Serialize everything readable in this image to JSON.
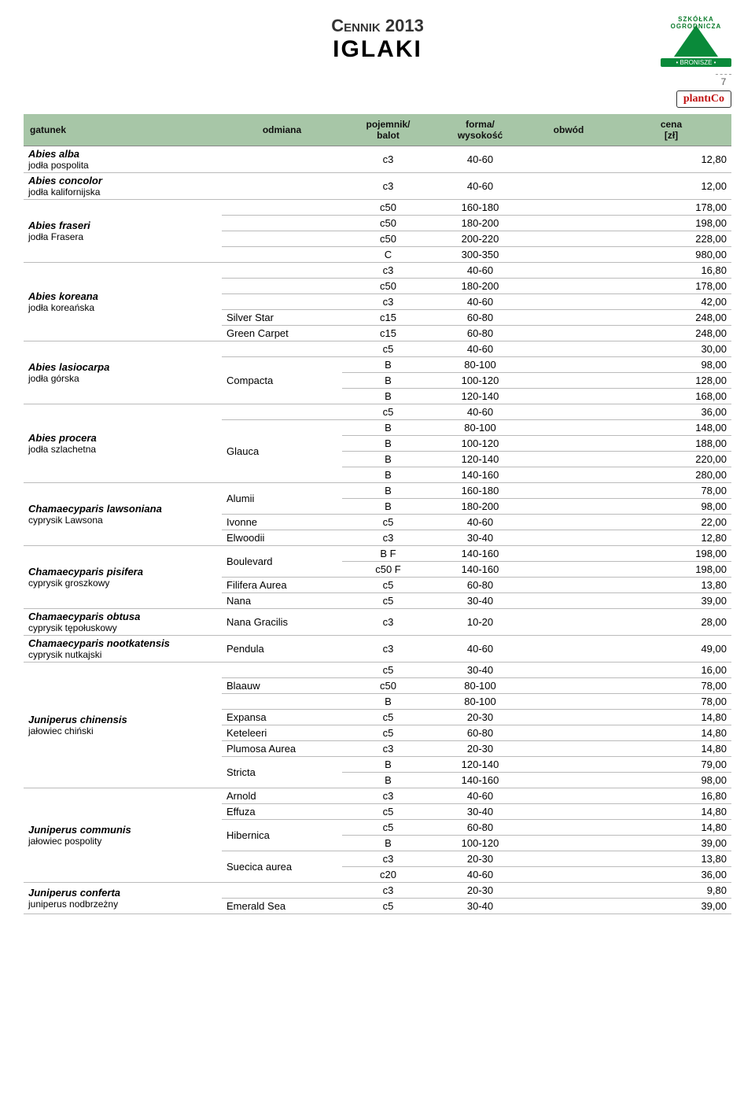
{
  "page": {
    "number": "7"
  },
  "title": {
    "small": "Cennik 2013",
    "big": "IGLAKI"
  },
  "logo": {
    "arc": "SZKÓŁKA OGRODNICZA",
    "bar": "• BRONISZE •",
    "brand": "plantıCo"
  },
  "headers": {
    "species": "gatunek",
    "variety": "odmiana",
    "container": "pojemnik/\nbalot",
    "form": "forma/\nwysokość",
    "circ": "obwód",
    "price": "cena\n[zł]"
  },
  "blocks": [
    {
      "sci": "Abies alba",
      "com": "jodła pospolita",
      "rows": [
        {
          "v": "",
          "c": "c3",
          "f": "40-60",
          "o": "",
          "p": "12,80"
        }
      ]
    },
    {
      "sci": "Abies concolor",
      "com": "jodła kalifornijska",
      "rows": [
        {
          "v": "",
          "c": "c3",
          "f": "40-60",
          "o": "",
          "p": "12,00"
        }
      ]
    },
    {
      "sci": "Abies fraseri",
      "com": "jodła Frasera",
      "rows": [
        {
          "v": "",
          "c": "c50",
          "f": "160-180",
          "o": "",
          "p": "178,00"
        },
        {
          "v": "",
          "c": "c50",
          "f": "180-200",
          "o": "",
          "p": "198,00"
        },
        {
          "v": "",
          "c": "c50",
          "f": "200-220",
          "o": "",
          "p": "228,00"
        },
        {
          "v": "",
          "c": "C",
          "f": "300-350",
          "o": "",
          "p": "980,00"
        }
      ]
    },
    {
      "sci": "Abies koreana",
      "com": "jodła koreańska",
      "rows": [
        {
          "v": "",
          "c": "c3",
          "f": "40-60",
          "o": "",
          "p": "16,80"
        },
        {
          "v": "",
          "c": "c50",
          "f": "180-200",
          "o": "",
          "p": "178,00"
        },
        {
          "v": "",
          "c": "c3",
          "f": "40-60",
          "o": "",
          "p": "42,00"
        },
        {
          "v": "Silver Star",
          "c": "c15",
          "f": "60-80",
          "o": "",
          "p": "248,00"
        },
        {
          "v": "Green Carpet",
          "c": "c15",
          "f": "60-80",
          "o": "",
          "p": "248,00"
        }
      ]
    },
    {
      "sci": "Abies lasiocarpa",
      "com": "jodła górska",
      "rows": [
        {
          "v": "",
          "c": "c5",
          "f": "40-60",
          "o": "",
          "p": "30,00"
        },
        {
          "v": "Compacta",
          "c": "B",
          "f": "80-100",
          "o": "",
          "p": "98,00",
          "vspan": 3
        },
        {
          "v": "",
          "c": "B",
          "f": "100-120",
          "o": "",
          "p": "128,00"
        },
        {
          "v": "",
          "c": "B",
          "f": "120-140",
          "o": "",
          "p": "168,00"
        }
      ]
    },
    {
      "sci": "Abies procera",
      "com": "jodła szlachetna",
      "rows": [
        {
          "v": "",
          "c": "c5",
          "f": "40-60",
          "o": "",
          "p": "36,00"
        },
        {
          "v": "Glauca",
          "c": "B",
          "f": "80-100",
          "o": "",
          "p": "148,00",
          "vspan": 4
        },
        {
          "v": "",
          "c": "B",
          "f": "100-120",
          "o": "",
          "p": "188,00"
        },
        {
          "v": "",
          "c": "B",
          "f": "120-140",
          "o": "",
          "p": "220,00"
        },
        {
          "v": "",
          "c": "B",
          "f": "140-160",
          "o": "",
          "p": "280,00"
        }
      ]
    },
    {
      "sci": "Chamaecyparis lawsoniana",
      "com": "cyprysik Lawsona",
      "rows": [
        {
          "v": "Alumii",
          "c": "B",
          "f": "160-180",
          "o": "",
          "p": "78,00",
          "vspan": 2
        },
        {
          "v": "",
          "c": "B",
          "f": "180-200",
          "o": "",
          "p": "98,00"
        },
        {
          "v": "Ivonne",
          "c": "c5",
          "f": "40-60",
          "o": "",
          "p": "22,00"
        },
        {
          "v": "Elwoodii",
          "c": "c3",
          "f": "30-40",
          "o": "",
          "p": "12,80"
        }
      ]
    },
    {
      "sci": "Chamaecyparis pisifera",
      "com": "cyprysik groszkowy",
      "rows": [
        {
          "v": "Boulevard",
          "c": "B F",
          "f": "140-160",
          "o": "",
          "p": "198,00",
          "vspan": 2
        },
        {
          "v": "",
          "c": "c50 F",
          "f": "140-160",
          "o": "",
          "p": "198,00"
        },
        {
          "v": "Filifera Aurea",
          "c": "c5",
          "f": "60-80",
          "o": "",
          "p": "13,80"
        },
        {
          "v": "Nana",
          "c": "c5",
          "f": "30-40",
          "o": "",
          "p": "39,00"
        }
      ]
    },
    {
      "sci": "Chamaecyparis obtusa",
      "com": "cyprysik tępołuskowy",
      "rows": [
        {
          "v": "Nana Gracilis",
          "c": "c3",
          "f": "10-20",
          "o": "",
          "p": "28,00"
        }
      ]
    },
    {
      "sci": "Chamaecyparis nootkatensis",
      "com": "cyprysik nutkajski",
      "rows": [
        {
          "v": "Pendula",
          "c": "c3",
          "f": "40-60",
          "o": "",
          "p": "49,00"
        }
      ]
    },
    {
      "sci": "Juniperus chinensis",
      "com": "jałowiec chiński",
      "rows": [
        {
          "v": "",
          "c": "c5",
          "f": "30-40",
          "o": "",
          "p": "16,00"
        },
        {
          "v": "Blaauw",
          "c": "c50",
          "f": "80-100",
          "o": "",
          "p": "78,00"
        },
        {
          "v": "",
          "c": "B",
          "f": "80-100",
          "o": "",
          "p": "78,00"
        },
        {
          "v": "Expansa",
          "c": "c5",
          "f": "20-30",
          "o": "",
          "p": "14,80"
        },
        {
          "v": "Keteleeri",
          "c": "c5",
          "f": "60-80",
          "o": "",
          "p": "14,80"
        },
        {
          "v": "Plumosa Aurea",
          "c": "c3",
          "f": "20-30",
          "o": "",
          "p": "14,80"
        },
        {
          "v": "Stricta",
          "c": "B",
          "f": "120-140",
          "o": "",
          "p": "79,00",
          "vspan": 2
        },
        {
          "v": "",
          "c": "B",
          "f": "140-160",
          "o": "",
          "p": "98,00"
        }
      ]
    },
    {
      "sci": "Juniperus communis",
      "com": "jałowiec pospolity",
      "rows": [
        {
          "v": "Arnold",
          "c": "c3",
          "f": "40-60",
          "o": "",
          "p": "16,80"
        },
        {
          "v": "Effuza",
          "c": "c5",
          "f": "30-40",
          "o": "",
          "p": "14,80"
        },
        {
          "v": "Hibernica",
          "c": "c5",
          "f": "60-80",
          "o": "",
          "p": "14,80",
          "vspan": 2
        },
        {
          "v": "",
          "c": "B",
          "f": "100-120",
          "o": "",
          "p": "39,00"
        },
        {
          "v": "Suecica aurea",
          "c": "c3",
          "f": "20-30",
          "o": "",
          "p": "13,80",
          "vspan": 2
        },
        {
          "v": "",
          "c": "c20",
          "f": "40-60",
          "o": "",
          "p": "36,00"
        }
      ]
    },
    {
      "sci": "Juniperus conferta",
      "com": "juniperus nodbrzeżny",
      "rows": [
        {
          "v": "",
          "c": "c3",
          "f": "20-30",
          "o": "",
          "p": "9,80"
        },
        {
          "v": "Emerald Sea",
          "c": "c5",
          "f": "30-40",
          "o": "",
          "p": "39,00"
        }
      ]
    }
  ]
}
